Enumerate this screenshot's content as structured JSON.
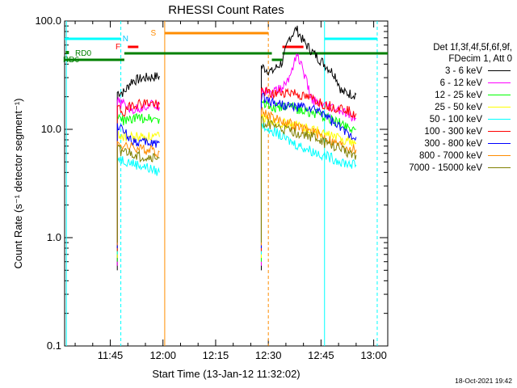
{
  "chart_data": {
    "type": "line",
    "title": "RHESSI Count Rates",
    "xlabel": "Start Time (13-Jan-12 11:32:02)",
    "ylabel": "Count Rate (s⁻¹ detector segment⁻¹)",
    "yscale": "log",
    "ylim": [
      0.1,
      100.0
    ],
    "y_ticks": [
      0.1,
      1.0,
      10.0,
      100.0
    ],
    "y_tick_labels": [
      "0.1",
      "1.0",
      "10.0",
      "100.0"
    ],
    "xlim_minutes": [
      -28,
      64
    ],
    "x_ticks_minutes": [
      -15,
      0,
      15,
      30,
      45,
      60
    ],
    "x_tick_labels": [
      "11:45",
      "12:00",
      "12:15",
      "12:30",
      "12:45",
      "13:00"
    ],
    "detector_info": [
      "Det 1f,3f,4f,5f,6f,9f,",
      "FDecim 1, Att 0"
    ],
    "series": [
      {
        "name": "3 - 6 keV",
        "color": "#000000",
        "segments": [
          [
            [
              -13,
              22
            ],
            [
              -11,
              22
            ],
            [
              -9,
              28
            ],
            [
              -5,
              30
            ],
            [
              -1,
              31
            ]
          ],
          [
            [
              28,
              38
            ],
            [
              31,
              34
            ],
            [
              34,
              42
            ],
            [
              36,
              70
            ],
            [
              38,
              85
            ],
            [
              40,
              65
            ],
            [
              43,
              50
            ],
            [
              46,
              40
            ],
            [
              49,
              32
            ],
            [
              51,
              22
            ],
            [
              55,
              21
            ]
          ]
        ]
      },
      {
        "name": "6 - 12 keV",
        "color": "#ff00ff",
        "segments": [
          [
            [
              -13,
              18
            ],
            [
              -11,
              17
            ],
            [
              -9,
              15
            ],
            [
              -6,
              16
            ],
            [
              -3,
              17
            ],
            [
              -1,
              16
            ]
          ],
          [
            [
              28,
              24
            ],
            [
              31,
              22
            ],
            [
              34,
              24
            ],
            [
              36,
              30
            ],
            [
              38,
              50
            ],
            [
              40,
              35
            ],
            [
              42,
              20
            ],
            [
              44,
              17
            ],
            [
              47,
              16
            ],
            [
              50,
              15
            ],
            [
              52,
              14
            ],
            [
              55,
              12.5
            ]
          ]
        ]
      },
      {
        "name": "12 - 25 keV",
        "color": "#00ff00",
        "segments": [
          [
            [
              -13,
              13
            ],
            [
              -11,
              12
            ],
            [
              -8,
              12.5
            ],
            [
              -5,
              13
            ],
            [
              -1,
              12.5
            ]
          ],
          [
            [
              28,
              18
            ],
            [
              31,
              16
            ],
            [
              34,
              16
            ],
            [
              37,
              16
            ],
            [
              40,
              15
            ],
            [
              43,
              14
            ],
            [
              46,
              13
            ],
            [
              49,
              12
            ],
            [
              52,
              11
            ],
            [
              55,
              10
            ]
          ]
        ]
      },
      {
        "name": "25 - 50 keV",
        "color": "#ffff00",
        "segments": [
          [
            [
              -13,
              9
            ],
            [
              -11,
              8.5
            ],
            [
              -8,
              8.5
            ],
            [
              -5,
              8.5
            ],
            [
              -1,
              8.5
            ]
          ],
          [
            [
              28,
              13
            ],
            [
              31,
              12
            ],
            [
              34,
              11.5
            ],
            [
              37,
              11
            ],
            [
              40,
              10.5
            ],
            [
              43,
              10
            ],
            [
              46,
              9
            ],
            [
              49,
              8.5
            ],
            [
              52,
              8
            ],
            [
              55,
              7.5
            ]
          ]
        ]
      },
      {
        "name": "50 - 100 keV",
        "color": "#00ffff",
        "segments": [
          [
            [
              -13,
              5.5
            ],
            [
              -11,
              5.2
            ],
            [
              -8,
              4.8
            ],
            [
              -5,
              4.5
            ],
            [
              -1,
              4
            ]
          ],
          [
            [
              28,
              11
            ],
            [
              31,
              10
            ],
            [
              34,
              8.5
            ],
            [
              37,
              7.5
            ],
            [
              40,
              6.8
            ],
            [
              43,
              6.2
            ],
            [
              46,
              5.8
            ],
            [
              49,
              5.3
            ],
            [
              52,
              4.9
            ],
            [
              55,
              4.7
            ]
          ]
        ]
      },
      {
        "name": "100 - 300 keV",
        "color": "#ff0000",
        "segments": [
          [
            [
              -13,
              16
            ],
            [
              -11,
              14
            ],
            [
              -9,
              17
            ],
            [
              -5,
              17.5
            ],
            [
              -1,
              17
            ]
          ],
          [
            [
              28,
              23
            ],
            [
              31,
              21
            ],
            [
              34,
              22
            ],
            [
              37,
              22
            ],
            [
              40,
              20
            ],
            [
              43,
              19
            ],
            [
              46,
              17
            ],
            [
              49,
              16
            ],
            [
              52,
              15.5
            ],
            [
              55,
              14
            ]
          ]
        ]
      },
      {
        "name": "300 - 800 keV",
        "color": "#0000ff",
        "segments": [
          [
            [
              -13,
              11
            ],
            [
              -11,
              9.5
            ],
            [
              -9,
              8
            ],
            [
              -6,
              7.5
            ],
            [
              -3,
              7.5
            ],
            [
              -1,
              7.5
            ]
          ],
          [
            [
              28,
              20
            ],
            [
              31,
              18
            ],
            [
              34,
              17
            ],
            [
              37,
              16
            ],
            [
              40,
              16
            ],
            [
              43,
              15
            ],
            [
              46,
              14
            ],
            [
              49,
              11
            ],
            [
              52,
              9.5
            ],
            [
              55,
              8.5
            ]
          ]
        ]
      },
      {
        "name": "800 - 7000 keV",
        "color": "#ff8c00",
        "segments": [
          [
            [
              -13,
              7.5
            ],
            [
              -11,
              7
            ],
            [
              -8,
              6.8
            ],
            [
              -5,
              6.5
            ],
            [
              -1,
              6.2
            ]
          ],
          [
            [
              28,
              15
            ],
            [
              31,
              13
            ],
            [
              34,
              12
            ],
            [
              37,
              11
            ],
            [
              40,
              10
            ],
            [
              43,
              9.5
            ],
            [
              46,
              8.5
            ],
            [
              49,
              7.5
            ],
            [
              52,
              7
            ],
            [
              55,
              6.5
            ]
          ]
        ]
      },
      {
        "name": "7000 - 15000 keV",
        "color": "#808000",
        "segments": [
          [
            [
              -13,
              6.5
            ],
            [
              -11,
              6.2
            ],
            [
              -8,
              5.8
            ],
            [
              -5,
              5.5
            ],
            [
              -1,
              5.5
            ]
          ],
          [
            [
              28,
              12
            ],
            [
              31,
              11
            ],
            [
              34,
              10
            ],
            [
              37,
              9.5
            ],
            [
              40,
              9
            ],
            [
              43,
              8.5
            ],
            [
              46,
              7.5
            ],
            [
              49,
              7
            ],
            [
              52,
              6.3
            ],
            [
              55,
              5.8
            ]
          ]
        ]
      }
    ],
    "annotations": [
      {
        "text": "N",
        "color": "#00c8ff",
        "minute": -11.5
      },
      {
        "text": "F",
        "color": "#ff0000",
        "minute": -13
      },
      {
        "text": "S",
        "color": "#ff8c00",
        "minute": -3.5
      },
      {
        "text": "RD0",
        "color": "#008000",
        "minute": -25
      },
      {
        "text": "RD6",
        "color": "#008000",
        "minute": -28
      }
    ],
    "timestamp": "18-Oct-2021 19:42"
  }
}
